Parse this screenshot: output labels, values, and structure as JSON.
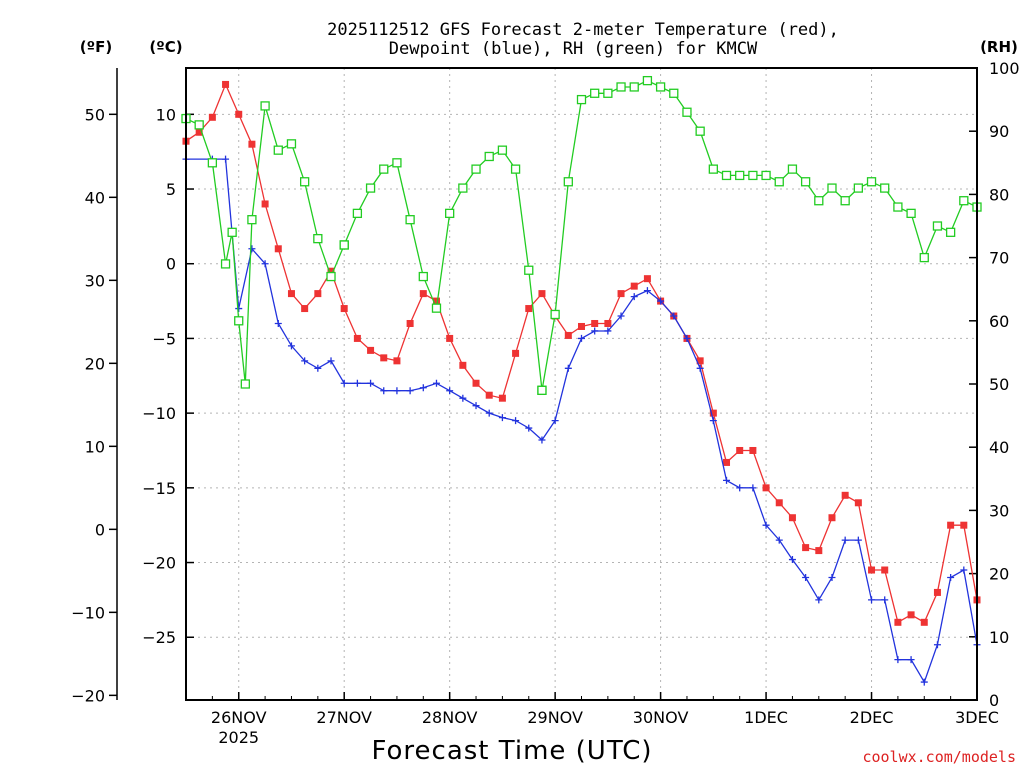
{
  "chart_data": {
    "type": "line",
    "title_line1": "2025112512 GFS Forecast 2-meter Temperature (red),",
    "title_line2": "Dewpoint (blue), RH (green) for KMCW",
    "xlabel": "Forecast Time (UTC)",
    "units": {
      "fahrenheit": "(ºF)",
      "celsius": "(ºC)",
      "rh": "(RH)"
    },
    "credit": "coolwx.com/models",
    "colors": {
      "temperature": "#ee3333",
      "dewpoint": "#2233dd",
      "rh": "#22cc22",
      "grid": "#b4b4b4"
    },
    "x_range_days": [
      -0.5,
      7.0
    ],
    "x_ticks": [
      {
        "day": 0,
        "label": "26NOV",
        "sublabel": "2025"
      },
      {
        "day": 1,
        "label": "27NOV",
        "sublabel": ""
      },
      {
        "day": 2,
        "label": "28NOV",
        "sublabel": ""
      },
      {
        "day": 3,
        "label": "29NOV",
        "sublabel": ""
      },
      {
        "day": 4,
        "label": "30NOV",
        "sublabel": ""
      },
      {
        "day": 5,
        "label": "1DEC",
        "sublabel": ""
      },
      {
        "day": 6,
        "label": "2DEC",
        "sublabel": ""
      },
      {
        "day": 7,
        "label": "3DEC",
        "sublabel": ""
      }
    ],
    "celsius_range": [
      -29.2,
      13.1
    ],
    "celsius_ticks": [
      {
        "v": 10,
        "label": "10"
      },
      {
        "v": 5,
        "label": "5"
      },
      {
        "v": 0,
        "label": "0"
      },
      {
        "v": -5,
        "label": "−5"
      },
      {
        "v": -10,
        "label": "−10"
      },
      {
        "v": -15,
        "label": "−15"
      },
      {
        "v": -20,
        "label": "−20"
      },
      {
        "v": -25,
        "label": "−25"
      }
    ],
    "fahrenheit_ticks": [
      {
        "v": 50,
        "label": "50"
      },
      {
        "v": 40,
        "label": "40"
      },
      {
        "v": 30,
        "label": "30"
      },
      {
        "v": 20,
        "label": "20"
      },
      {
        "v": 10,
        "label": "10"
      },
      {
        "v": 0,
        "label": "0"
      },
      {
        "v": -10,
        "label": "−10"
      },
      {
        "v": -20,
        "label": "−20"
      }
    ],
    "rh_range": [
      0,
      100
    ],
    "rh_ticks": [
      {
        "v": 100,
        "label": "100"
      },
      {
        "v": 90,
        "label": "90"
      },
      {
        "v": 80,
        "label": "80"
      },
      {
        "v": 70,
        "label": "70"
      },
      {
        "v": 60,
        "label": "60"
      },
      {
        "v": 50,
        "label": "50"
      },
      {
        "v": 40,
        "label": "40"
      },
      {
        "v": 30,
        "label": "30"
      },
      {
        "v": 20,
        "label": "20"
      },
      {
        "v": 10,
        "label": "10"
      },
      {
        "v": 0,
        "label": "0"
      }
    ],
    "series": [
      {
        "name": "Temperature (°C)",
        "key": "temperature",
        "axis": "celsius",
        "marker": "filled-square",
        "points": [
          [
            -0.5,
            8.2
          ],
          [
            -0.375,
            8.8
          ],
          [
            -0.25,
            9.8
          ],
          [
            -0.125,
            12
          ],
          [
            0,
            10
          ],
          [
            0.125,
            8
          ],
          [
            0.25,
            4
          ],
          [
            0.375,
            1
          ],
          [
            0.5,
            -2
          ],
          [
            0.625,
            -3
          ],
          [
            0.75,
            -2
          ],
          [
            0.875,
            -0.5
          ],
          [
            1,
            -3
          ],
          [
            1.125,
            -5
          ],
          [
            1.25,
            -5.8
          ],
          [
            1.375,
            -6.3
          ],
          [
            1.5,
            -6.5
          ],
          [
            1.625,
            -4
          ],
          [
            1.75,
            -2
          ],
          [
            1.875,
            -2.5
          ],
          [
            2,
            -5
          ],
          [
            2.125,
            -6.8
          ],
          [
            2.25,
            -8
          ],
          [
            2.375,
            -8.8
          ],
          [
            2.5,
            -9
          ],
          [
            2.625,
            -6
          ],
          [
            2.75,
            -3
          ],
          [
            2.875,
            -2
          ],
          [
            3,
            -3.5
          ],
          [
            3.125,
            -4.8
          ],
          [
            3.25,
            -4.2
          ],
          [
            3.375,
            -4
          ],
          [
            3.5,
            -4
          ],
          [
            3.625,
            -2
          ],
          [
            3.75,
            -1.5
          ],
          [
            3.875,
            -1
          ],
          [
            4,
            -2.5
          ],
          [
            4.125,
            -3.5
          ],
          [
            4.25,
            -5
          ],
          [
            4.375,
            -6.5
          ],
          [
            4.5,
            -10
          ],
          [
            4.625,
            -13.3
          ],
          [
            4.75,
            -12.5
          ],
          [
            4.875,
            -12.5
          ],
          [
            5,
            -15
          ],
          [
            5.125,
            -16
          ],
          [
            5.25,
            -17
          ],
          [
            5.375,
            -19
          ],
          [
            5.5,
            -19.2
          ],
          [
            5.625,
            -17
          ],
          [
            5.75,
            -15.5
          ],
          [
            5.875,
            -16
          ],
          [
            6,
            -20.5
          ],
          [
            6.125,
            -20.5
          ],
          [
            6.25,
            -24
          ],
          [
            6.375,
            -23.5
          ],
          [
            6.5,
            -24
          ],
          [
            6.625,
            -22
          ],
          [
            6.75,
            -17.5
          ],
          [
            6.875,
            -17.5
          ],
          [
            7,
            -22.5
          ]
        ]
      },
      {
        "name": "Dewpoint (°C)",
        "key": "dewpoint",
        "axis": "celsius",
        "marker": "plus",
        "points": [
          [
            -0.5,
            7
          ],
          [
            -0.25,
            7
          ],
          [
            -0.125,
            7
          ],
          [
            0,
            -3
          ],
          [
            0.125,
            1
          ],
          [
            0.25,
            0
          ],
          [
            0.375,
            -4
          ],
          [
            0.5,
            -5.5
          ],
          [
            0.625,
            -6.5
          ],
          [
            0.75,
            -7
          ],
          [
            0.875,
            -6.5
          ],
          [
            1,
            -8
          ],
          [
            1.125,
            -8
          ],
          [
            1.25,
            -8
          ],
          [
            1.375,
            -8.5
          ],
          [
            1.5,
            -8.5
          ],
          [
            1.625,
            -8.5
          ],
          [
            1.75,
            -8.3
          ],
          [
            1.875,
            -8
          ],
          [
            2,
            -8.5
          ],
          [
            2.125,
            -9
          ],
          [
            2.25,
            -9.5
          ],
          [
            2.375,
            -10
          ],
          [
            2.5,
            -10.3
          ],
          [
            2.625,
            -10.5
          ],
          [
            2.75,
            -11
          ],
          [
            2.875,
            -11.8
          ],
          [
            3,
            -10.5
          ],
          [
            3.125,
            -7
          ],
          [
            3.25,
            -5
          ],
          [
            3.375,
            -4.5
          ],
          [
            3.5,
            -4.5
          ],
          [
            3.625,
            -3.5
          ],
          [
            3.75,
            -2.2
          ],
          [
            3.875,
            -1.8
          ],
          [
            4,
            -2.5
          ],
          [
            4.125,
            -3.5
          ],
          [
            4.25,
            -5
          ],
          [
            4.375,
            -7
          ],
          [
            4.5,
            -10.5
          ],
          [
            4.625,
            -14.5
          ],
          [
            4.75,
            -15
          ],
          [
            4.875,
            -15
          ],
          [
            5,
            -17.5
          ],
          [
            5.125,
            -18.5
          ],
          [
            5.25,
            -19.8
          ],
          [
            5.375,
            -21
          ],
          [
            5.5,
            -22.5
          ],
          [
            5.625,
            -21
          ],
          [
            5.75,
            -18.5
          ],
          [
            5.875,
            -18.5
          ],
          [
            6,
            -22.5
          ],
          [
            6.125,
            -22.5
          ],
          [
            6.25,
            -26.5
          ],
          [
            6.375,
            -26.5
          ],
          [
            6.5,
            -28
          ],
          [
            6.625,
            -25.5
          ],
          [
            6.75,
            -21
          ],
          [
            6.875,
            -20.5
          ],
          [
            7,
            -25.5
          ]
        ]
      },
      {
        "name": "RH (%)",
        "key": "rh",
        "axis": "rh",
        "marker": "open-square",
        "points": [
          [
            -0.5,
            92
          ],
          [
            -0.375,
            91
          ],
          [
            -0.25,
            85
          ],
          [
            -0.125,
            69
          ],
          [
            -0.0625,
            74
          ],
          [
            0,
            60
          ],
          [
            0.0625,
            50
          ],
          [
            0.125,
            76
          ],
          [
            0.25,
            94
          ],
          [
            0.375,
            87
          ],
          [
            0.5,
            88
          ],
          [
            0.625,
            82
          ],
          [
            0.75,
            73
          ],
          [
            0.875,
            67
          ],
          [
            1,
            72
          ],
          [
            1,
            72
          ],
          [
            1.125,
            77
          ],
          [
            1.25,
            81
          ],
          [
            1.375,
            84
          ],
          [
            1.5,
            85
          ],
          [
            1.625,
            76
          ],
          [
            1.75,
            67
          ],
          [
            1.875,
            62
          ],
          [
            2,
            77
          ],
          [
            2.125,
            81
          ],
          [
            2.25,
            84
          ],
          [
            2.375,
            86
          ],
          [
            2.5,
            87
          ],
          [
            2.625,
            84
          ],
          [
            2.75,
            68
          ],
          [
            2.875,
            49
          ],
          [
            2.875,
            49
          ],
          [
            3,
            61
          ],
          [
            3.125,
            82
          ],
          [
            3.25,
            95
          ],
          [
            3.375,
            96
          ],
          [
            3.5,
            96
          ],
          [
            3.625,
            97
          ],
          [
            3.75,
            97
          ],
          [
            3.875,
            98
          ],
          [
            4,
            97
          ],
          [
            4.125,
            96
          ],
          [
            4.25,
            93
          ],
          [
            4.375,
            90
          ],
          [
            4.5,
            84
          ],
          [
            4.625,
            83
          ],
          [
            4.75,
            83
          ],
          [
            4.875,
            83
          ],
          [
            5,
            83
          ],
          [
            5.125,
            82
          ],
          [
            5.25,
            84
          ],
          [
            5.375,
            82
          ],
          [
            5.5,
            79
          ],
          [
            5.625,
            81
          ],
          [
            5.75,
            79
          ],
          [
            5.875,
            81
          ],
          [
            6,
            82
          ],
          [
            6.125,
            81
          ],
          [
            6.25,
            78
          ],
          [
            6.375,
            77
          ],
          [
            6.5,
            70
          ],
          [
            6.625,
            75
          ],
          [
            6.75,
            74
          ],
          [
            6.875,
            79
          ],
          [
            7,
            78
          ]
        ]
      }
    ]
  }
}
